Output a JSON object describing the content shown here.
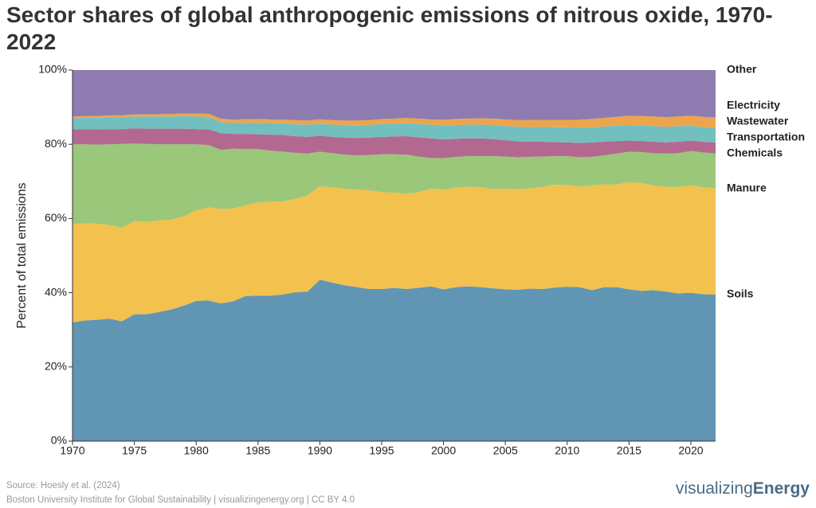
{
  "chart_data": {
    "type": "stacked_area",
    "title": "Sector shares of global anthropogenic emissions of nitrous oxide, 1970-2022",
    "ylabel": "Percent of total emissions",
    "x": [
      1970,
      1971,
      1972,
      1973,
      1974,
      1975,
      1976,
      1977,
      1978,
      1979,
      1980,
      1981,
      1982,
      1983,
      1984,
      1985,
      1986,
      1987,
      1988,
      1989,
      1990,
      1991,
      1992,
      1993,
      1994,
      1995,
      1996,
      1997,
      1998,
      1999,
      2000,
      2001,
      2002,
      2003,
      2004,
      2005,
      2006,
      2007,
      2008,
      2009,
      2010,
      2011,
      2012,
      2013,
      2014,
      2015,
      2016,
      2017,
      2018,
      2019,
      2020,
      2021,
      2022
    ],
    "xlim": [
      1970,
      2022
    ],
    "xticks": [
      1970,
      1975,
      1980,
      1985,
      1990,
      1995,
      2000,
      2005,
      2010,
      2015,
      2020
    ],
    "ylim": [
      0,
      100
    ],
    "yticks": [
      {
        "value": 0,
        "label": "0%"
      },
      {
        "value": 20,
        "label": "20%"
      },
      {
        "value": 40,
        "label": "40%"
      },
      {
        "value": 60,
        "label": "60%"
      },
      {
        "value": 80,
        "label": "80%"
      },
      {
        "value": 100,
        "label": "100%"
      }
    ],
    "grid": false,
    "series": [
      {
        "name": "Soils",
        "color": "#6096b4",
        "label_color": "#3a6f95",
        "values": [
          32,
          32.5,
          32.7,
          33,
          32.3,
          34.2,
          34.2,
          34.8,
          35.5,
          36.5,
          37.8,
          37.9,
          37.1,
          37.7,
          39.1,
          39.2,
          39.2,
          39.5,
          40.1,
          40.3,
          43.5,
          42.7,
          42.0,
          41.5,
          41.0,
          41.0,
          41.3,
          41.0,
          41.3,
          41.7,
          40.9,
          41.5,
          41.7,
          41.5,
          41.2,
          40.9,
          40.8,
          41.1,
          41.0,
          41.4,
          41.6,
          41.5,
          40.7,
          41.5,
          41.5,
          40.9,
          40.5,
          40.7,
          40.3,
          39.8,
          40.0,
          39.6,
          39.5
        ]
      },
      {
        "name": "Manure",
        "color": "#f2c14e",
        "label_color": "#e8a917",
        "values": [
          26.5,
          26.2,
          25.9,
          25.2,
          25.2,
          25.1,
          24.9,
          24.7,
          24.2,
          24.1,
          24.4,
          25.1,
          25.5,
          25.0,
          24.5,
          25.1,
          25.3,
          25.1,
          25.2,
          25.9,
          25.2,
          25.7,
          26.0,
          26.3,
          26.6,
          26.1,
          25.7,
          25.7,
          25.8,
          26.4,
          26.8,
          26.8,
          26.9,
          26.9,
          26.8,
          27.1,
          27.1,
          27.0,
          27.5,
          27.7,
          27.4,
          27.1,
          28.2,
          27.7,
          27.6,
          28.9,
          29.0,
          28.2,
          28.2,
          28.7,
          29.0,
          28.8,
          28.6
        ]
      },
      {
        "name": "Chemicals",
        "color": "#9ac77a",
        "label_color": "#6aaa44",
        "values": [
          21.5,
          21.3,
          21.3,
          21.8,
          22.6,
          20.9,
          21.0,
          20.5,
          20.3,
          19.4,
          17.8,
          16.8,
          15.9,
          16.1,
          15.1,
          14.4,
          13.8,
          13.4,
          12.4,
          11.3,
          9.3,
          9.2,
          9.2,
          9.2,
          9.5,
          10.2,
          10.3,
          10.5,
          9.6,
          8.2,
          8.6,
          8.3,
          8.2,
          8.4,
          8.8,
          8.7,
          8.6,
          8.5,
          8.2,
          7.7,
          7.8,
          7.9,
          7.7,
          7.8,
          8.4,
          8.2,
          8.4,
          8.7,
          9.0,
          9.1,
          9.2,
          9.4,
          9.4
        ]
      },
      {
        "name": "Transportation",
        "color": "#b3698f",
        "label_color": "#8f3a6a",
        "values": [
          4.0,
          4.0,
          4.1,
          4.1,
          4.0,
          4.1,
          4.1,
          4.2,
          4.2,
          4.2,
          4.1,
          4.2,
          4.5,
          4.0,
          4.1,
          4.0,
          4.3,
          4.5,
          4.5,
          4.5,
          4.3,
          4.4,
          4.6,
          4.7,
          4.7,
          4.7,
          4.8,
          5.0,
          5.2,
          5.3,
          5.0,
          4.9,
          4.8,
          4.8,
          4.6,
          4.4,
          4.3,
          4.1,
          4.0,
          3.8,
          3.7,
          3.9,
          3.9,
          3.7,
          3.4,
          3.0,
          3.0,
          3.1,
          3.0,
          3.1,
          2.8,
          2.9,
          3.0
        ]
      },
      {
        "name": "Wastewater",
        "color": "#72bfc0",
        "label_color": "#3ba6a8",
        "values": [
          3.0,
          3.1,
          3.1,
          3.2,
          3.2,
          3.2,
          3.3,
          3.3,
          3.3,
          3.4,
          3.4,
          3.4,
          3.0,
          2.9,
          3.0,
          3.1,
          3.1,
          3.2,
          3.2,
          3.3,
          3.2,
          3.3,
          3.4,
          3.4,
          3.4,
          3.5,
          3.5,
          3.5,
          3.6,
          3.7,
          3.8,
          3.7,
          3.7,
          3.7,
          3.8,
          3.8,
          3.9,
          3.9,
          4.0,
          4.0,
          4.1,
          4.1,
          4.1,
          4.1,
          4.1,
          4.2,
          4.2,
          4.2,
          4.2,
          4.2,
          4.0,
          3.9,
          3.8
        ]
      },
      {
        "name": "Electricity",
        "color": "#eda54b",
        "label_color": "#e58a1a",
        "values": [
          0.5,
          0.5,
          0.5,
          0.5,
          0.5,
          0.6,
          0.6,
          0.6,
          0.7,
          0.7,
          0.8,
          0.8,
          0.9,
          0.9,
          1.0,
          1.0,
          1.0,
          1.0,
          1.1,
          1.1,
          1.2,
          1.2,
          1.2,
          1.3,
          1.3,
          1.3,
          1.3,
          1.4,
          1.4,
          1.4,
          1.5,
          1.6,
          1.6,
          1.7,
          1.7,
          1.8,
          1.8,
          1.9,
          1.9,
          2.0,
          2.0,
          2.1,
          2.2,
          2.3,
          2.4,
          2.5,
          2.5,
          2.6,
          2.6,
          2.6,
          2.7,
          2.8,
          2.9
        ]
      },
      {
        "name": "Other",
        "color": "#8e7cb0",
        "label_color": "#7d5ea8",
        "values": [
          12.5,
          12.4,
          12.4,
          12.2,
          12.2,
          11.9,
          11.9,
          11.9,
          11.8,
          11.7,
          11.7,
          11.8,
          13.1,
          13.4,
          13.2,
          13.2,
          13.3,
          13.3,
          13.5,
          13.6,
          13.3,
          13.5,
          13.6,
          13.6,
          13.5,
          13.2,
          13.1,
          12.9,
          13.1,
          13.3,
          13.4,
          13.2,
          13.1,
          13.0,
          13.1,
          13.3,
          13.5,
          13.5,
          13.4,
          13.4,
          13.4,
          13.4,
          13.2,
          12.9,
          12.6,
          12.3,
          12.4,
          12.5,
          12.7,
          12.5,
          12.3,
          12.6,
          12.8
        ]
      }
    ],
    "source": "Source: Hoesly et al. (2024)",
    "credit": "Boston University Institute for Global Sustainability | visualizingenergy.org | CC BY 4.0",
    "brand_light": "visualizing",
    "brand_bold": "Energy"
  }
}
